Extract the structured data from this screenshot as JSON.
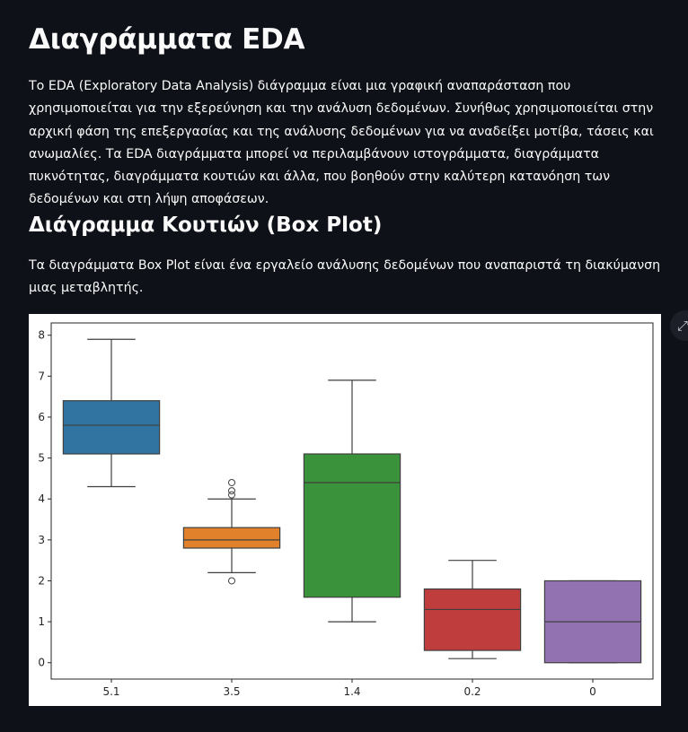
{
  "page": {
    "title": "Διαγράμματα EDA",
    "intro": "Το EDA (Exploratory Data Analysis) διάγραμμα είναι μια γραφική αναπαράσταση που χρησιμοποιείται για την εξερεύνηση και την ανάλυση δεδομένων. Συνήθως χρησιμοποιείται στην αρχική φάση της επεξεργασίας και της ανάλυσης δεδομένων για να αναδείξει μοτίβα, τάσεις και ανωμαλίες. Τα EDA διαγράμματα μπορεί να περιλαμβάνουν ιστογράμματα, διαγράμματα πυκνότητας, διαγράμματα κουτιών και άλλα, που βοηθούν στην καλύτερη κατανόηση των δεδομένων και στη λήψη αποφάσεων.",
    "section_title": "Διάγραμμα Κουτιών (Box Plot)",
    "section_text": "Τα διαγράμματα Box Plot είναι ένα εργαλείο ανάλυσης δεδομένων που αναπαριστά τη διακύμανση μιας μεταβλητής.",
    "fullscreen_icon": "expand-icon"
  },
  "chart_data": {
    "type": "box",
    "categories": [
      "5.1",
      "3.5",
      "1.4",
      "0.2",
      "0"
    ],
    "ylim": [
      -0.4,
      8.3
    ],
    "yticks": [
      0,
      1,
      2,
      3,
      4,
      5,
      6,
      7,
      8
    ],
    "grid": false,
    "boxes": [
      {
        "category": "5.1",
        "whisker_low": 4.3,
        "q1": 5.1,
        "median": 5.8,
        "q3": 6.4,
        "whisker_high": 7.9,
        "outliers": [],
        "color": "#3274a1"
      },
      {
        "category": "3.5",
        "whisker_low": 2.2,
        "q1": 2.8,
        "median": 3.0,
        "q3": 3.3,
        "whisker_high": 4.0,
        "outliers": [
          2.0,
          4.1,
          4.2,
          4.4
        ],
        "color": "#e1812c"
      },
      {
        "category": "1.4",
        "whisker_low": 1.0,
        "q1": 1.6,
        "median": 4.4,
        "q3": 5.1,
        "whisker_high": 6.9,
        "outliers": [],
        "color": "#3a923a"
      },
      {
        "category": "0.2",
        "whisker_low": 0.1,
        "q1": 0.3,
        "median": 1.3,
        "q3": 1.8,
        "whisker_high": 2.5,
        "outliers": [],
        "color": "#c03d3e"
      },
      {
        "category": "0",
        "whisker_low": 0,
        "q1": 0,
        "median": 1,
        "q3": 2,
        "whisker_high": 2,
        "outliers": [],
        "color": "#9372b2"
      }
    ]
  }
}
